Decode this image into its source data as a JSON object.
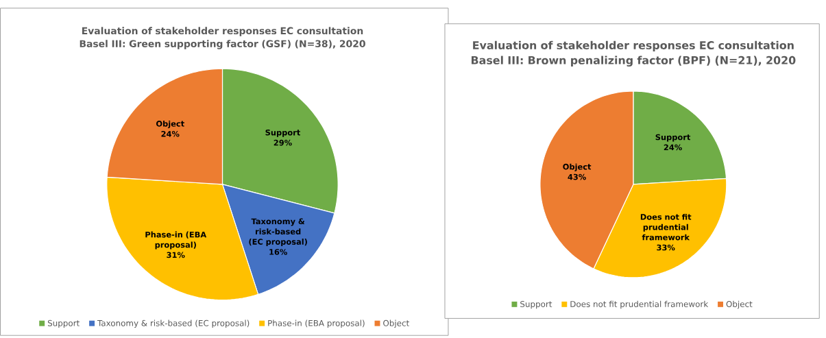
{
  "chart_data": [
    {
      "type": "pie",
      "title": "Evaluation of stakeholder responses EC consultation Basel III: Green supporting factor (GSF) (N=38), 2020",
      "categories": [
        "Support",
        "Taxonomy & risk-based (EC proposal)",
        "Phase-in (EBA proposal)",
        "Object"
      ],
      "values": [
        29,
        16,
        31,
        24
      ],
      "value_labels": [
        "29%",
        "16%",
        "31%",
        "24%"
      ],
      "colors": [
        "#70ad47",
        "#4472c4",
        "#ffc000",
        "#ed7d31"
      ],
      "legend": "bottom"
    },
    {
      "type": "pie",
      "title": "Evaluation of stakeholder responses EC consultation Basel III: Brown penalizing factor (BPF) (N=21), 2020",
      "categories": [
        "Support",
        "Does not fit prudential framework",
        "Object"
      ],
      "values": [
        24,
        33,
        43
      ],
      "value_labels": [
        "24%",
        "33%",
        "43%"
      ],
      "colors": [
        "#70ad47",
        "#ffc000",
        "#ed7d31"
      ],
      "legend": "bottom"
    }
  ]
}
